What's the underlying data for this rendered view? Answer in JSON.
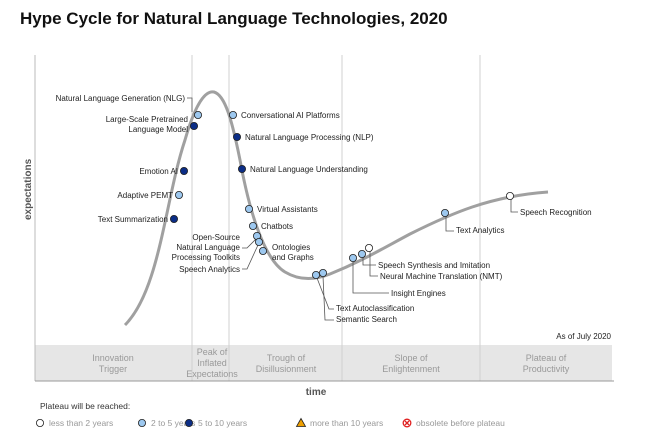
{
  "title": "Hype Cycle for Natural Language Technologies, 2020",
  "y_axis_label": "expectations",
  "x_axis_label": "time",
  "as_of": "As of July 2020",
  "phases": [
    [
      "Innovation",
      "Trigger"
    ],
    [
      "Peak of",
      "Inflated",
      "Expectations"
    ],
    [
      "Trough of",
      "Disillusionment"
    ],
    [
      "Slope of",
      "Enlightenment"
    ],
    [
      "Plateau of",
      "Productivity"
    ]
  ],
  "legend": {
    "title": "Plateau will be reached:",
    "items": [
      "less than 2 years",
      "2 to 5 years",
      "5 to 10 years",
      "more than 10 years",
      "obsolete before plateau"
    ]
  },
  "colors": {
    "lt2": "#ffffff",
    "y2to5": "#9dc8ef",
    "y5to10": "#0b2d86",
    "gt10": "#f0a000",
    "obsolete": "#e02020",
    "curve": "#a0a0a0"
  },
  "technologies": [
    {
      "name": "Natural Language Generation (NLG)",
      "plateau": "2 to 5 years"
    },
    {
      "name": "Large-Scale Pretrained Language Model",
      "lines": [
        "Large-Scale Pretrained",
        "Language Model"
      ],
      "plateau": "5 to 10 years"
    },
    {
      "name": "Emotion AI",
      "plateau": "5 to 10 years"
    },
    {
      "name": "Adaptive PEMT",
      "plateau": "2 to 5 years"
    },
    {
      "name": "Text Summarization",
      "plateau": "5 to 10 years"
    },
    {
      "name": "Conversational AI Platforms",
      "plateau": "2 to 5 years"
    },
    {
      "name": "Natural Language Processing (NLP)",
      "plateau": "5 to 10 years"
    },
    {
      "name": "Natural Language Understanding",
      "plateau": "5 to 10 years"
    },
    {
      "name": "Virtual Assistants",
      "plateau": "2 to 5 years"
    },
    {
      "name": "Chatbots",
      "plateau": "2 to 5 years"
    },
    {
      "name": "Open-Source Natural Language Processing Toolkits",
      "lines": [
        "Open-Source",
        "Natural Language",
        "Processing Toolkits"
      ],
      "plateau": "2 to 5 years"
    },
    {
      "name": "Speech Analytics",
      "plateau": "2 to 5 years"
    },
    {
      "name": "Ontologies and Graphs",
      "lines": [
        "Ontologies",
        "and Graphs"
      ],
      "plateau": "2 to 5 years"
    },
    {
      "name": "Text Autoclassification",
      "plateau": "2 to 5 years"
    },
    {
      "name": "Semantic Search",
      "plateau": "2 to 5 years"
    },
    {
      "name": "Insight Engines",
      "plateau": "2 to 5 years"
    },
    {
      "name": "Speech Synthesis and Imitation",
      "plateau": "2 to 5 years"
    },
    {
      "name": "Neural Machine Translation (NMT)",
      "plateau": "less than 2 years"
    },
    {
      "name": "Text Analytics",
      "plateau": "2 to 5 years"
    },
    {
      "name": "Speech Recognition",
      "plateau": "less than 2 years"
    }
  ]
}
